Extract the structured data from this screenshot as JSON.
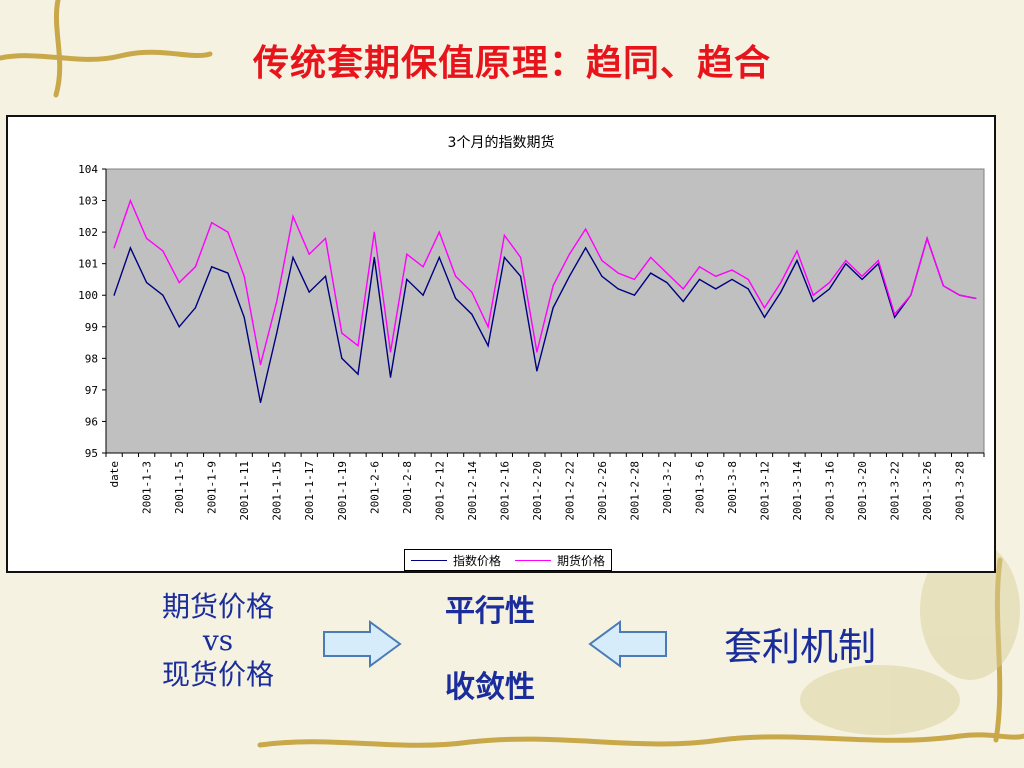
{
  "slide": {
    "title": "传统套期保值原理：趋同、趋合",
    "left_text": [
      "期货价格",
      "vs",
      "现货价格"
    ],
    "mid_text": [
      "平行性",
      "收敛性"
    ],
    "right_text": "套利机制"
  },
  "colors": {
    "title": "#e8141c",
    "text": "#1a2d9a",
    "plot_bg": "#c0c0c0",
    "index_line": "#000080",
    "futures_line": "#ff00ff",
    "arrow_fill": "#d6ecfb",
    "arrow_stroke": "#4a7bb7"
  },
  "chart_data": {
    "type": "line",
    "title": "3个月的指数期货",
    "xlabel": "",
    "ylabel": "",
    "ylim": [
      95,
      104
    ],
    "yticks": [
      95,
      96,
      97,
      98,
      99,
      100,
      101,
      102,
      103,
      104
    ],
    "grid": false,
    "legend_position": "bottom",
    "xtick_labels": [
      "date",
      "2001-1-3",
      "2001-1-5",
      "2001-1-9",
      "2001-1-11",
      "2001-1-15",
      "2001-1-17",
      "2001-1-19",
      "2001-2-6",
      "2001-2-8",
      "2001-2-12",
      "2001-2-14",
      "2001-2-16",
      "2001-2-20",
      "2001-2-22",
      "2001-2-26",
      "2001-2-28",
      "2001-3-2",
      "2001-3-6",
      "2001-3-8",
      "2001-3-12",
      "2001-3-14",
      "2001-3-16",
      "2001-3-20",
      "2001-3-22",
      "2001-3-26",
      "2001-3-28"
    ],
    "series": [
      {
        "name": "指数价格",
        "values": [
          100.0,
          101.5,
          100.4,
          100.0,
          99.0,
          99.6,
          100.9,
          100.7,
          99.3,
          96.6,
          98.8,
          101.2,
          100.1,
          100.6,
          98.0,
          97.5,
          101.2,
          97.4,
          100.5,
          100.0,
          101.2,
          99.9,
          99.4,
          98.4,
          101.2,
          100.6,
          97.6,
          99.6,
          100.6,
          101.5,
          100.6,
          100.2,
          100.0,
          100.7,
          100.4,
          99.8,
          100.5,
          100.2,
          100.5,
          100.2,
          99.3,
          100.1,
          101.1,
          99.8,
          100.2,
          101.0,
          100.5,
          101.0,
          99.3,
          100.0,
          101.8,
          100.3,
          100.0,
          99.9
        ]
      },
      {
        "name": "期货价格",
        "values": [
          101.5,
          103.0,
          101.8,
          101.4,
          100.4,
          100.9,
          102.3,
          102.0,
          100.6,
          97.8,
          99.8,
          102.5,
          101.3,
          101.8,
          98.8,
          98.4,
          102.0,
          98.2,
          101.3,
          100.9,
          102.0,
          100.6,
          100.1,
          99.0,
          101.9,
          101.2,
          98.2,
          100.3,
          101.3,
          102.1,
          101.1,
          100.7,
          100.5,
          101.2,
          100.7,
          100.2,
          100.9,
          100.6,
          100.8,
          100.5,
          99.6,
          100.4,
          101.4,
          100.0,
          100.4,
          101.1,
          100.6,
          101.1,
          99.4,
          100.0,
          101.8,
          100.3,
          100.0,
          99.9
        ]
      }
    ]
  }
}
